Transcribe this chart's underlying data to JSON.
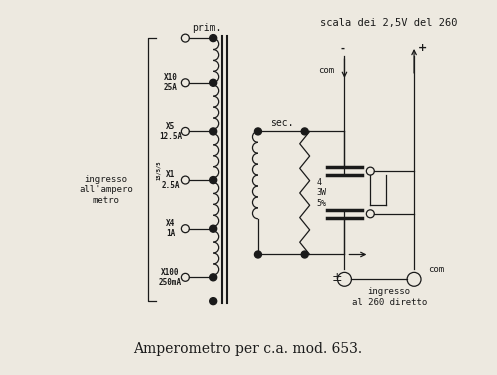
{
  "title": "Amperometro per c.a. mod. 653.",
  "bg_color": "#ede9e0",
  "line_color": "#1a1a1a",
  "figsize": [
    4.97,
    3.75
  ],
  "dpi": 100,
  "labels": {
    "prim": "prim.",
    "sec": "sec.",
    "scala": "scala dei 2,5V del 260",
    "ingresso_label": "ingresso\nall'ampero\nmetro",
    "ingresso_bottom": "ingresso\nal 260 diretto",
    "X10": "X10\n25A",
    "X5": "X5\n12.5A",
    "X1": "X1\n2.5A",
    "X4": "X4\n1A",
    "X100": "X100\n250mA",
    "R_label": "4\n3W\n5%",
    "com_top": "com",
    "com_bottom": "com",
    "plus_top": "+",
    "minus_top": "-",
    "plus_bottom": "±",
    "ratio": "15/5/5"
  }
}
